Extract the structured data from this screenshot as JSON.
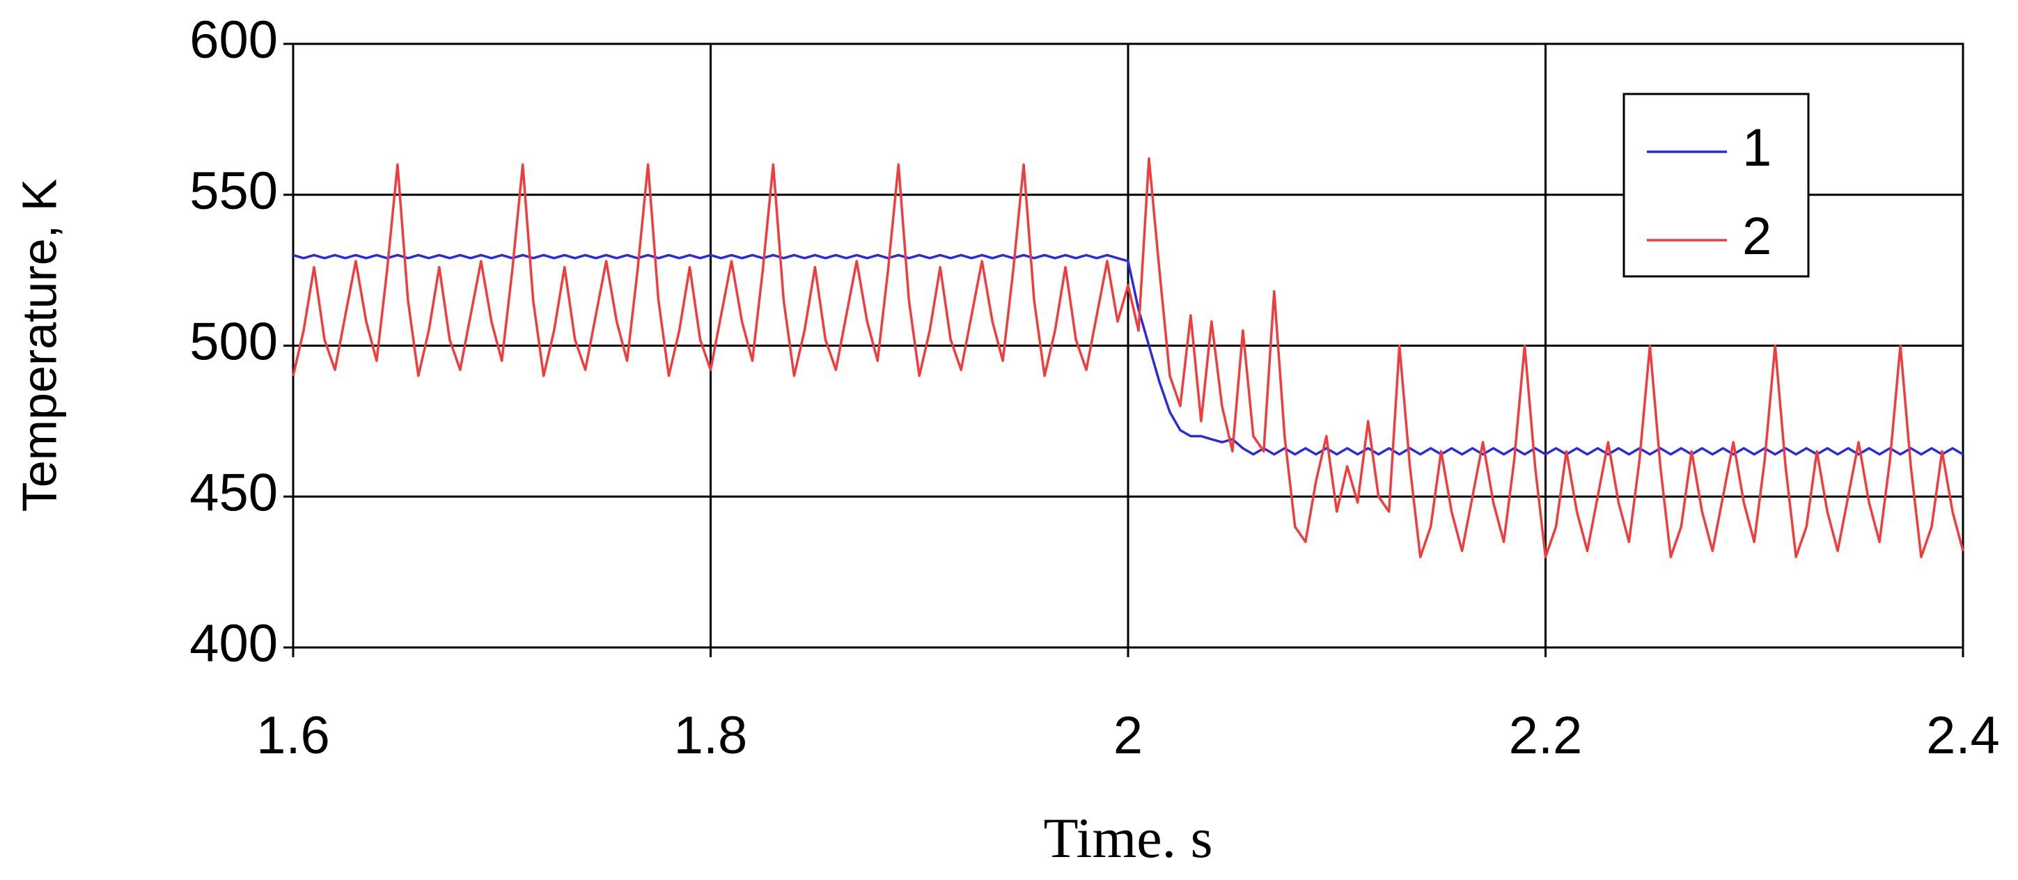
{
  "chart_data": {
    "type": "line",
    "xlabel": "Time. s",
    "ylabel": "Temperature, K",
    "xlim": [
      1.6,
      2.4
    ],
    "xticks": [
      1.6,
      1.8,
      2,
      2.2,
      2.4
    ],
    "ylim": [
      400,
      600
    ],
    "yticks": [
      400,
      450,
      500,
      550,
      600
    ],
    "grid": true,
    "legend": "upper right",
    "x": [
      1.6,
      1.605,
      1.61,
      1.615,
      1.62,
      1.625,
      1.63,
      1.635,
      1.64,
      1.645,
      1.65,
      1.655,
      1.66,
      1.665,
      1.67,
      1.675,
      1.68,
      1.685,
      1.69,
      1.695,
      1.7,
      1.705,
      1.71,
      1.715,
      1.72,
      1.725,
      1.73,
      1.735,
      1.74,
      1.745,
      1.75,
      1.755,
      1.76,
      1.765,
      1.77,
      1.775,
      1.78,
      1.785,
      1.79,
      1.795,
      1.8,
      1.805,
      1.81,
      1.815,
      1.82,
      1.825,
      1.83,
      1.835,
      1.84,
      1.845,
      1.85,
      1.855,
      1.86,
      1.865,
      1.87,
      1.875,
      1.88,
      1.885,
      1.89,
      1.895,
      1.9,
      1.905,
      1.91,
      1.915,
      1.92,
      1.925,
      1.93,
      1.935,
      1.94,
      1.945,
      1.95,
      1.955,
      1.96,
      1.965,
      1.97,
      1.975,
      1.98,
      1.985,
      1.99,
      1.995,
      2.0,
      2.005,
      2.01,
      2.015,
      2.02,
      2.025,
      2.03,
      2.035,
      2.04,
      2.045,
      2.05,
      2.055,
      2.06,
      2.065,
      2.07,
      2.075,
      2.08,
      2.085,
      2.09,
      2.095,
      2.1,
      2.105,
      2.11,
      2.115,
      2.12,
      2.125,
      2.13,
      2.135,
      2.14,
      2.145,
      2.15,
      2.155,
      2.16,
      2.165,
      2.17,
      2.175,
      2.18,
      2.185,
      2.19,
      2.195,
      2.2,
      2.205,
      2.21,
      2.215,
      2.22,
      2.225,
      2.23,
      2.235,
      2.24,
      2.245,
      2.25,
      2.255,
      2.26,
      2.265,
      2.27,
      2.275,
      2.28,
      2.285,
      2.29,
      2.295,
      2.3,
      2.305,
      2.31,
      2.315,
      2.32,
      2.325,
      2.33,
      2.335,
      2.34,
      2.345,
      2.35,
      2.355,
      2.36,
      2.365,
      2.37,
      2.375,
      2.38,
      2.385,
      2.39,
      2.395,
      2.4
    ],
    "series": [
      {
        "name": "1",
        "color": "#2a2ae0",
        "values": [
          530,
          529,
          530,
          529,
          530,
          529,
          530,
          529,
          530,
          529,
          530,
          529,
          530,
          529,
          530,
          529,
          530,
          529,
          530,
          529,
          530,
          529,
          530,
          529,
          530,
          529,
          530,
          529,
          530,
          529,
          530,
          529,
          530,
          529,
          530,
          529,
          530,
          529,
          530,
          529,
          530,
          529,
          530,
          529,
          530,
          529,
          530,
          529,
          530,
          529,
          530,
          529,
          530,
          529,
          530,
          529,
          530,
          529,
          530,
          529,
          530,
          529,
          530,
          529,
          530,
          529,
          530,
          529,
          530,
          529,
          530,
          529,
          530,
          529,
          530,
          529,
          530,
          529,
          530,
          529,
          528,
          512,
          500,
          488,
          478,
          472,
          470,
          470,
          469,
          468,
          469,
          466,
          464,
          466,
          464,
          466,
          464,
          466,
          464,
          466,
          464,
          466,
          464,
          466,
          464,
          466,
          464,
          466,
          464,
          466,
          464,
          466,
          464,
          466,
          464,
          466,
          464,
          466,
          464,
          466,
          464,
          466,
          464,
          466,
          464,
          466,
          464,
          466,
          464,
          466,
          464,
          466,
          464,
          466,
          464,
          466,
          464,
          466,
          464,
          466,
          464,
          466,
          464,
          466,
          464,
          466,
          464,
          466,
          464,
          466,
          464,
          466,
          464,
          466,
          464,
          466,
          464,
          466,
          464,
          466,
          464
        ]
      },
      {
        "name": "2",
        "color": "#f03c3c",
        "values": [
          490,
          505,
          526,
          502,
          492,
          510,
          528,
          508,
          495,
          525,
          560,
          515,
          490,
          505,
          526,
          502,
          492,
          510,
          528,
          508,
          495,
          525,
          560,
          515,
          490,
          505,
          526,
          502,
          492,
          510,
          528,
          508,
          495,
          525,
          560,
          515,
          490,
          505,
          526,
          502,
          492,
          510,
          528,
          508,
          495,
          525,
          560,
          515,
          490,
          505,
          526,
          502,
          492,
          510,
          528,
          508,
          495,
          525,
          560,
          515,
          490,
          505,
          526,
          502,
          492,
          510,
          528,
          508,
          495,
          525,
          560,
          515,
          490,
          505,
          526,
          502,
          492,
          510,
          528,
          508,
          520,
          505,
          562,
          525,
          490,
          480,
          510,
          475,
          508,
          480,
          465,
          505,
          470,
          465,
          518,
          470,
          440,
          435,
          455,
          470,
          445,
          460,
          448,
          475,
          450,
          445,
          500,
          460,
          430,
          440,
          465,
          445,
          432,
          450,
          468,
          448,
          435,
          462,
          500,
          460,
          430,
          440,
          465,
          445,
          432,
          450,
          468,
          448,
          435,
          462,
          500,
          460,
          430,
          440,
          465,
          445,
          432,
          450,
          468,
          448,
          435,
          462,
          500,
          460,
          430,
          440,
          465,
          445,
          432,
          450,
          468,
          448,
          435,
          462,
          500,
          460,
          430,
          440,
          465,
          445,
          432
        ]
      }
    ]
  }
}
